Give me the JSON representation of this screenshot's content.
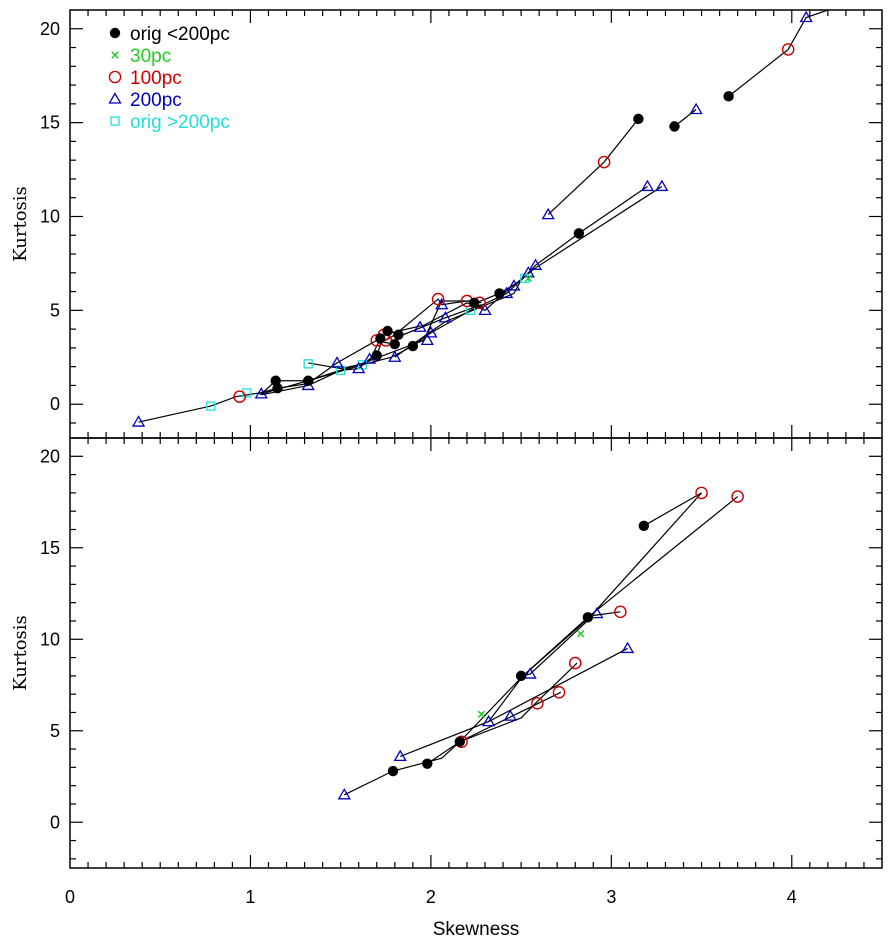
{
  "chart_data": {
    "type": "scatter",
    "xlabel": "Skewness",
    "xlim": [
      0,
      4.5
    ],
    "x_ticks": [
      "0",
      "1",
      "2",
      "3",
      "4"
    ],
    "colors": {
      "orig_lt200": "#000000",
      "pc30": "#22cc22",
      "pc100": "#cc0000",
      "pc200": "#0000bb",
      "orig_gt200": "#22dddd",
      "line": "#000000"
    },
    "legend": {
      "position": "top-left",
      "entries": [
        {
          "key": "orig_lt200",
          "marker": "filled-circle",
          "label": "orig <200pc"
        },
        {
          "key": "pc30",
          "marker": "cross",
          "label": "30pc"
        },
        {
          "key": "pc100",
          "marker": "open-circle",
          "label": "100pc"
        },
        {
          "key": "pc200",
          "marker": "open-triangle",
          "label": "200pc"
        },
        {
          "key": "orig_gt200",
          "marker": "open-square",
          "label": "orig >200pc"
        }
      ]
    },
    "panels": [
      {
        "name": "top",
        "ylabel": "Kurtosis",
        "ylim": [
          -1.8,
          21
        ],
        "y_ticks": [
          "0",
          "5",
          "10",
          "15",
          "20"
        ],
        "tracks": [
          [
            [
              0.38,
              -0.95
            ],
            [
              0.78,
              -0.1
            ],
            [
              0.92,
              0.4
            ],
            [
              1.05,
              0.6
            ],
            [
              1.15,
              0.85
            ],
            [
              1.32,
              1.1
            ],
            [
              1.48,
              2.2
            ],
            [
              1.7,
              3.4
            ],
            [
              1.75,
              3.4
            ],
            [
              1.8,
              3.7
            ],
            [
              2.04,
              5.6
            ],
            [
              2.06,
              5.3
            ],
            [
              2.2,
              5.5
            ],
            [
              2.25,
              5.4
            ],
            [
              2.38,
              5.9
            ],
            [
              2.5,
              6.6
            ],
            [
              2.58,
              7.4
            ],
            [
              2.82,
              9.1
            ],
            [
              3.2,
              11.6
            ]
          ],
          [
            [
              1.06,
              0.55
            ],
            [
              1.14,
              1.25
            ],
            [
              1.32,
              1.25
            ],
            [
              1.62,
              2.1
            ],
            [
              1.78,
              2.5
            ],
            [
              1.9,
              3.1
            ],
            [
              2.0,
              3.8
            ],
            [
              2.22,
              5.0
            ],
            [
              2.42,
              5.9
            ],
            [
              2.52,
              6.8
            ],
            [
              2.57,
              7.2
            ],
            [
              3.28,
              11.6
            ]
          ],
          [
            [
              1.06,
              0.5
            ],
            [
              1.32,
              1.0
            ],
            [
              1.5,
              1.8
            ],
            [
              1.6,
              1.9
            ],
            [
              1.66,
              2.4
            ],
            [
              1.7,
              2.6
            ],
            [
              1.74,
              3.7
            ],
            [
              1.76,
              3.9
            ],
            [
              1.78,
              3.8
            ],
            [
              1.82,
              3.9
            ],
            [
              1.96,
              4.2
            ],
            [
              2.2,
              5.4
            ],
            [
              2.3,
              5.0
            ],
            [
              2.44,
              6.2
            ],
            [
              2.56,
              7.1
            ]
          ],
          [
            [
              1.05,
              0.52
            ],
            [
              1.3,
              1.2
            ],
            [
              1.66,
              2.3
            ],
            [
              1.72,
              3.5
            ],
            [
              1.74,
              3.3
            ],
            [
              1.8,
              3.2
            ],
            [
              1.82,
              3.6
            ],
            [
              2.08,
              4.6
            ],
            [
              2.28,
              5.3
            ]
          ],
          [
            [
              1.32,
              2.2
            ],
            [
              1.5,
              1.9
            ],
            [
              1.6,
              2.1
            ],
            [
              1.96,
              3.4
            ],
            [
              2.06,
              5.5
            ],
            [
              2.24,
              5.5
            ],
            [
              2.28,
              5.4
            ]
          ],
          [
            [
              1.8,
              2.5
            ],
            [
              1.96,
              3.6
            ],
            [
              2.08,
              4.4
            ],
            [
              2.46,
              5.9
            ],
            [
              2.5,
              6.6
            ]
          ],
          [
            [
              2.65,
              10.1
            ],
            [
              2.96,
              12.9
            ],
            [
              3.15,
              15.2
            ]
          ],
          [
            [
              3.35,
              14.8
            ],
            [
              3.47,
              15.7
            ]
          ],
          [
            [
              3.65,
              16.4
            ],
            [
              3.98,
              18.9
            ],
            [
              4.08,
              20.6
            ],
            [
              4.2,
              21.0
            ]
          ]
        ],
        "points": {
          "orig_lt200": [
            [
              1.14,
              1.25
            ],
            [
              1.15,
              0.85
            ],
            [
              1.32,
              1.25
            ],
            [
              1.7,
              2.6
            ],
            [
              1.72,
              3.5
            ],
            [
              1.76,
              3.9
            ],
            [
              1.8,
              3.2
            ],
            [
              1.82,
              3.7
            ],
            [
              1.9,
              3.1
            ],
            [
              2.24,
              5.4
            ],
            [
              2.38,
              5.9
            ],
            [
              2.82,
              9.1
            ],
            [
              3.15,
              15.2
            ],
            [
              3.35,
              14.8
            ],
            [
              3.65,
              16.4
            ]
          ],
          "pc30": [
            [
              2.54,
              6.7
            ]
          ],
          "pc100": [
            [
              0.94,
              0.4
            ],
            [
              1.7,
              3.4
            ],
            [
              1.74,
              3.7
            ],
            [
              1.75,
              3.4
            ],
            [
              2.04,
              5.6
            ],
            [
              2.2,
              5.5
            ],
            [
              2.27,
              5.4
            ],
            [
              2.96,
              12.9
            ],
            [
              3.98,
              18.9
            ]
          ],
          "pc200": [
            [
              0.38,
              -0.95
            ],
            [
              1.06,
              0.55
            ],
            [
              1.32,
              1.0
            ],
            [
              1.48,
              2.2
            ],
            [
              1.6,
              1.9
            ],
            [
              1.66,
              2.4
            ],
            [
              1.8,
              2.5
            ],
            [
              1.94,
              4.1
            ],
            [
              1.98,
              3.4
            ],
            [
              2.0,
              3.8
            ],
            [
              2.06,
              5.3
            ],
            [
              2.08,
              4.6
            ],
            [
              2.3,
              5.0
            ],
            [
              2.42,
              5.9
            ],
            [
              2.46,
              6.3
            ],
            [
              2.54,
              7.0
            ],
            [
              2.58,
              7.4
            ],
            [
              2.65,
              10.1
            ],
            [
              3.2,
              11.6
            ],
            [
              3.28,
              11.6
            ],
            [
              3.47,
              15.7
            ],
            [
              4.08,
              20.6
            ]
          ],
          "orig_gt200": [
            [
              0.78,
              -0.1
            ],
            [
              0.98,
              0.6
            ],
            [
              1.32,
              2.15
            ],
            [
              1.5,
              1.8
            ],
            [
              1.62,
              2.1
            ],
            [
              2.22,
              5.0
            ],
            [
              2.52,
              6.7
            ]
          ]
        }
      },
      {
        "name": "bottom",
        "ylabel": "Kurtosis",
        "ylim": [
          -2.5,
          21
        ],
        "y_ticks": [
          "0",
          "5",
          "10",
          "15",
          "20"
        ],
        "tracks": [
          [
            [
              1.52,
              1.5
            ],
            [
              1.79,
              2.8
            ],
            [
              2.06,
              3.5
            ],
            [
              2.16,
              4.4
            ],
            [
              2.5,
              5.7
            ],
            [
              2.58,
              6.5
            ],
            [
              2.81,
              8.7
            ]
          ],
          [
            [
              1.98,
              3.2
            ],
            [
              2.16,
              4.4
            ],
            [
              2.43,
              5.7
            ],
            [
              2.72,
              7.1
            ]
          ],
          [
            [
              1.83,
              3.6
            ],
            [
              2.32,
              5.5
            ],
            [
              2.51,
              8.0
            ],
            [
              2.88,
              11.2
            ],
            [
              3.5,
              18.0
            ],
            [
              3.18,
              16.2
            ]
          ],
          [
            [
              2.16,
              4.4
            ],
            [
              2.51,
              8.0
            ],
            [
              2.87,
              11.2
            ],
            [
              3.7,
              17.8
            ]
          ],
          [
            [
              2.32,
              5.5
            ],
            [
              3.09,
              9.5
            ]
          ],
          [
            [
              2.51,
              8.0
            ],
            [
              2.55,
              8.1
            ],
            [
              2.9,
              11.3
            ],
            [
              3.05,
              11.5
            ]
          ]
        ],
        "points": {
          "orig_lt200": [
            [
              1.79,
              2.8
            ],
            [
              1.98,
              3.2
            ],
            [
              2.16,
              4.4
            ],
            [
              2.5,
              8.0
            ],
            [
              2.87,
              11.2
            ],
            [
              3.18,
              16.2
            ]
          ],
          "pc30": [
            [
              2.28,
              5.9
            ],
            [
              2.83,
              10.3
            ]
          ],
          "pc100": [
            [
              2.17,
              4.4
            ],
            [
              2.59,
              6.5
            ],
            [
              2.71,
              7.1
            ],
            [
              2.8,
              8.7
            ],
            [
              3.05,
              11.5
            ],
            [
              3.5,
              18.0
            ],
            [
              3.7,
              17.8
            ]
          ],
          "pc200": [
            [
              1.52,
              1.5
            ],
            [
              1.83,
              3.6
            ],
            [
              2.32,
              5.5
            ],
            [
              2.44,
              5.8
            ],
            [
              2.55,
              8.1
            ],
            [
              2.92,
              11.4
            ],
            [
              3.09,
              9.5
            ]
          ],
          "orig_gt200": []
        }
      }
    ]
  }
}
